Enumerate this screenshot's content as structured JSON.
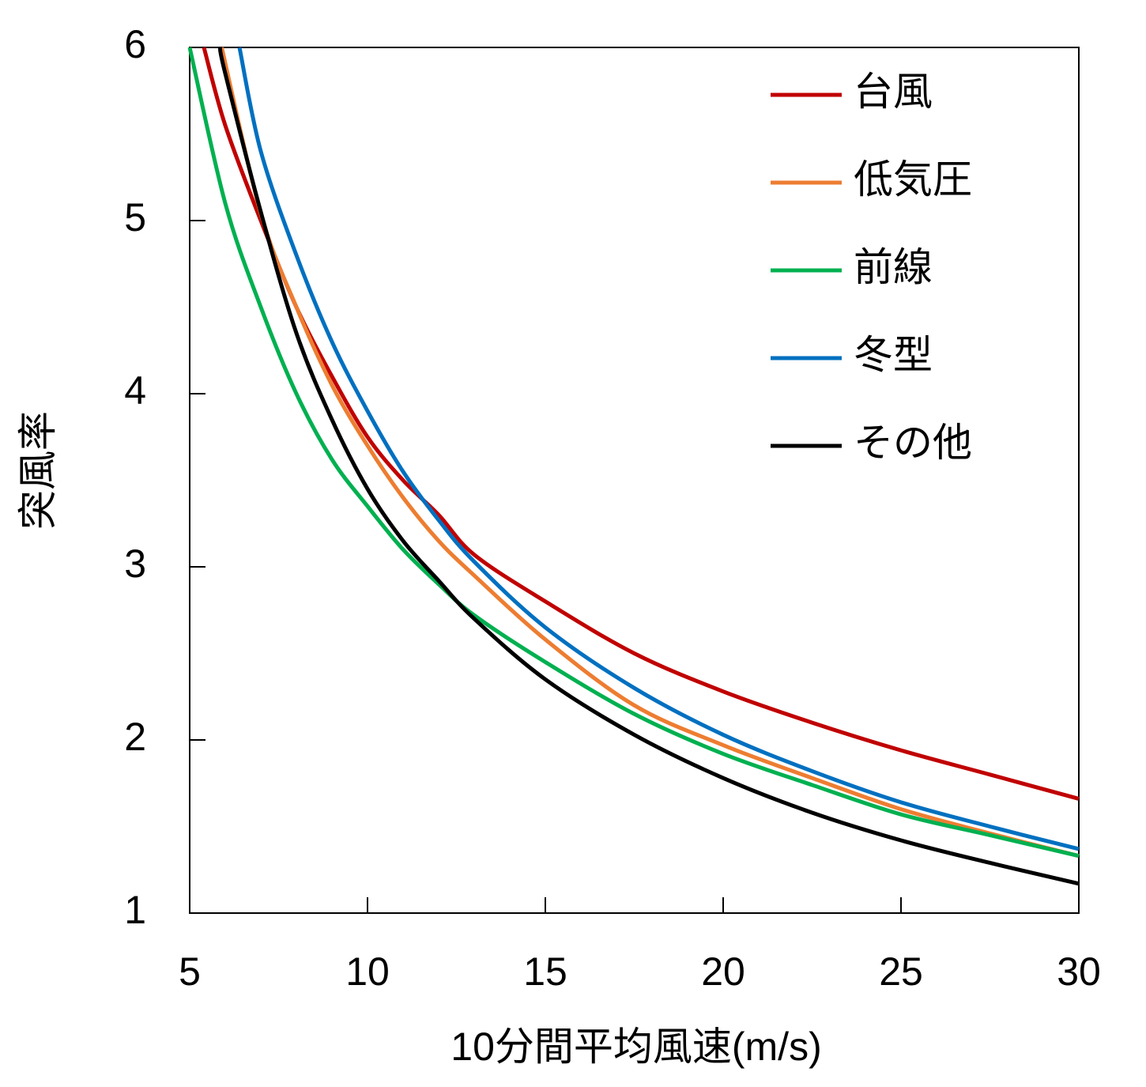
{
  "chart_data": {
    "type": "line",
    "xlabel": "10分間平均風速(m/s)",
    "ylabel": "突風率",
    "xlim": [
      5,
      30
    ],
    "xticks": [
      5,
      10,
      15,
      20,
      25,
      30
    ],
    "ylim": [
      1,
      6
    ],
    "yticks": [
      1,
      2,
      3,
      4,
      5,
      6
    ],
    "legend": "upper right",
    "series": [
      {
        "name": "台風",
        "color": "#c00000",
        "x": [
          5.4,
          6,
          7,
          8,
          9,
          10,
          11,
          12,
          13,
          15,
          17.5,
          20,
          22.5,
          25,
          27.5,
          30
        ],
        "values": [
          6.0,
          5.55,
          5.0,
          4.5,
          4.1,
          3.75,
          3.5,
          3.3,
          3.07,
          2.8,
          2.5,
          2.28,
          2.1,
          1.94,
          1.8,
          1.66
        ]
      },
      {
        "name": "低気圧",
        "color": "#ed7d31",
        "x": [
          5.9,
          7,
          8,
          9,
          10,
          11,
          12,
          13,
          15,
          17.5,
          20,
          22.5,
          25,
          27.5,
          30
        ],
        "values": [
          6.0,
          5.04,
          4.5,
          4.05,
          3.7,
          3.4,
          3.15,
          2.95,
          2.58,
          2.2,
          1.97,
          1.78,
          1.6,
          1.46,
          1.33
        ]
      },
      {
        "name": "前線",
        "color": "#00b050",
        "x": [
          5,
          6,
          7,
          8,
          9,
          10,
          11,
          12,
          13,
          15,
          17.5,
          20,
          22.5,
          25,
          27.5,
          30
        ],
        "values": [
          6.0,
          5.1,
          4.5,
          4.0,
          3.62,
          3.35,
          3.1,
          2.9,
          2.72,
          2.45,
          2.15,
          1.92,
          1.74,
          1.57,
          1.45,
          1.33
        ]
      },
      {
        "name": "冬型",
        "color": "#0070c0",
        "x": [
          6.4,
          7,
          8,
          9,
          10,
          11,
          12,
          13,
          15,
          17.5,
          20,
          22.5,
          25,
          27.5,
          30
        ],
        "values": [
          6.0,
          5.4,
          4.8,
          4.3,
          3.9,
          3.55,
          3.27,
          3.03,
          2.65,
          2.3,
          2.03,
          1.82,
          1.64,
          1.5,
          1.37
        ]
      },
      {
        "name": "その他",
        "color": "#000000",
        "x": [
          5.85,
          6,
          7,
          8,
          9,
          10,
          11,
          12,
          13,
          15,
          17.5,
          20,
          22.5,
          25,
          27.5,
          30
        ],
        "values": [
          6.0,
          5.85,
          5.05,
          4.35,
          3.85,
          3.45,
          3.15,
          2.92,
          2.7,
          2.35,
          2.03,
          1.78,
          1.58,
          1.42,
          1.29,
          1.17
        ]
      }
    ]
  }
}
